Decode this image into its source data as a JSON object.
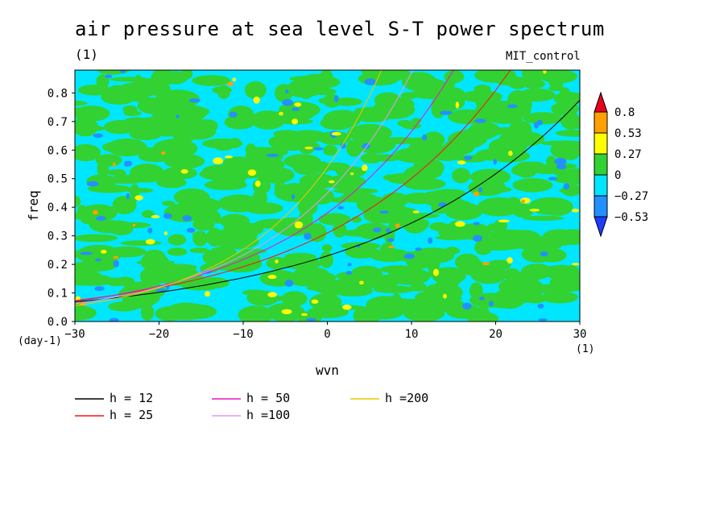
{
  "chart_data": {
    "type": "heatmap",
    "title": "air pressure at sea level S-T power spectrum",
    "subtitle": "(1)",
    "model_label": "MIT_control",
    "xlabel": "wvn",
    "ylabel": "freq",
    "x_unit": "(1)",
    "y_unit": "(day-1)",
    "xlim": [
      -30,
      30
    ],
    "ylim": [
      0,
      0.88
    ],
    "x_ticks": [
      "-30",
      "-20",
      "-10",
      "0",
      "10",
      "20",
      "30"
    ],
    "y_ticks": [
      "0.0",
      "0.1",
      "0.2",
      "0.3",
      "0.4",
      "0.5",
      "0.6",
      "0.7",
      "0.8"
    ],
    "colorbar": {
      "labels": [
        "0.8",
        "0.53",
        "0.27",
        "0",
        "-0.27",
        "-0.53"
      ],
      "colors": [
        "#e8001c",
        "#ffa000",
        "#ffff00",
        "#32d232",
        "#00e6ff",
        "#2291ff",
        "#1e3cff"
      ]
    },
    "dispersion_curves": [
      {
        "label": "h = 12",
        "color": "#000000"
      },
      {
        "label": "h = 25",
        "color": "#ff1010"
      },
      {
        "label": "h = 50",
        "color": "#ee10c8"
      },
      {
        "label": "h =100",
        "color": "#e49af0"
      },
      {
        "label": "h =200",
        "color": "#f0c800"
      }
    ]
  }
}
